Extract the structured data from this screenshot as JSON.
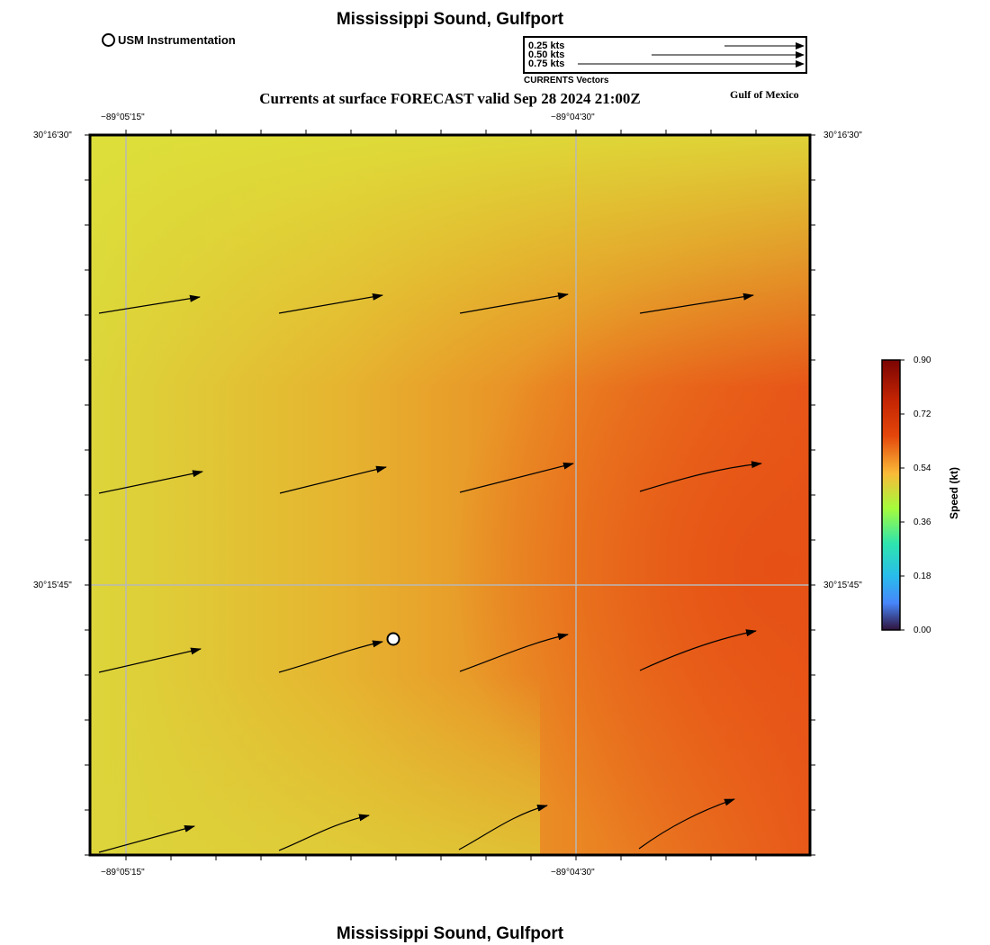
{
  "titles": {
    "top": "Mississippi Sound, Gulfport",
    "bottom": "Mississippi Sound, Gulfport",
    "subtitle": "Currents at surface FORECAST valid Sep 28 2024 21:00Z",
    "region": "Gulf of Mexico"
  },
  "legend": {
    "instrumentation_label": "USM Instrumentation",
    "instrumentation_icon": "white-circle-marker",
    "vector_scale": [
      {
        "label": "0.25 kts",
        "speed_kt": 0.25
      },
      {
        "label": "0.50 kts",
        "speed_kt": 0.5
      },
      {
        "label": "0.75 kts",
        "speed_kt": 0.75
      }
    ],
    "vector_caption": "CURRENTS Vectors"
  },
  "axes": {
    "lon_labels": [
      "−89°05'15\"",
      "−89°04'30\""
    ],
    "lat_labels": [
      "30°16'30\"",
      "30°15'45\""
    ]
  },
  "colorbar": {
    "title": "Speed (kt)",
    "ticks": [
      "0.90",
      "0.72",
      "0.54",
      "0.36",
      "0.18",
      "0.00"
    ],
    "colors": [
      "#7a0403",
      "#e4460a",
      "#f9ba38",
      "#a4fc3c",
      "#2ee5ae",
      "#28bceb",
      "#4686fb",
      "#30123b"
    ]
  },
  "map": {
    "field_colors": {
      "low": "#dde03a",
      "mid": "#e8a82e",
      "high": "#e8531a"
    },
    "vector_color": "#000000",
    "station_marker": "white-circle-marker"
  }
}
